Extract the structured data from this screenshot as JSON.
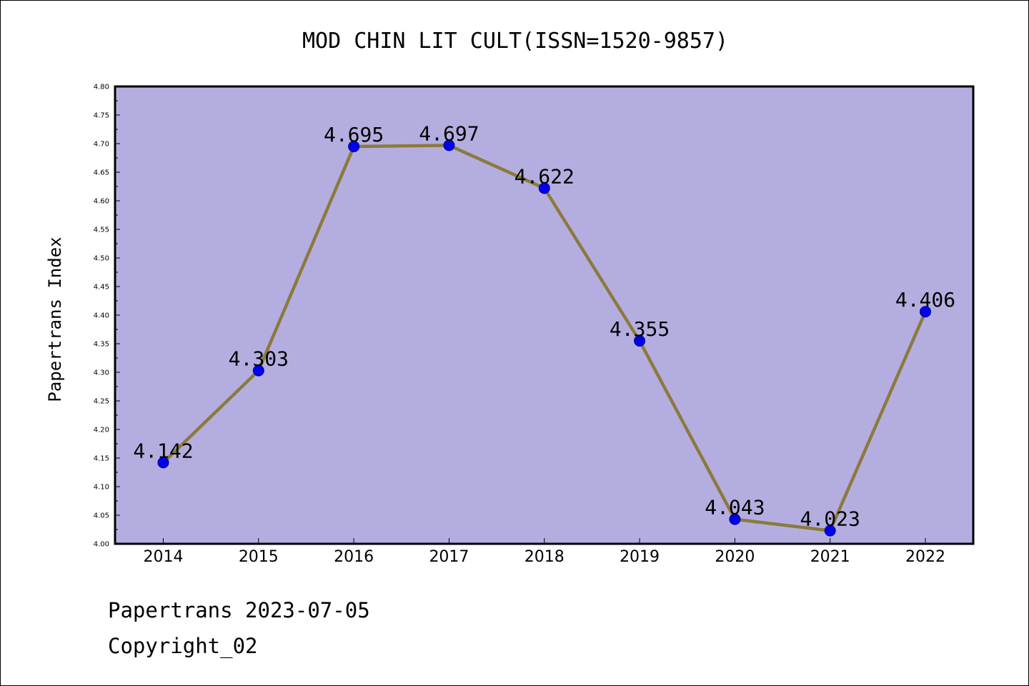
{
  "chart_data": {
    "type": "line",
    "title": "MOD CHIN LIT CULT(ISSN=1520-9857)",
    "ylabel": "Papertrans Index",
    "xlabel": "",
    "categories": [
      "2014",
      "2015",
      "2016",
      "2017",
      "2018",
      "2019",
      "2020",
      "2021",
      "2022"
    ],
    "values": [
      4.142,
      4.303,
      4.695,
      4.697,
      4.622,
      4.355,
      4.043,
      4.023,
      4.406
    ],
    "data_labels": [
      "4.142",
      "4.303",
      "4.695",
      "4.697",
      "4.622",
      "4.355",
      "4.043",
      "4.023",
      "4.406"
    ],
    "ylim": [
      4.0,
      4.8
    ],
    "yticks": [
      "4.00",
      "4.05",
      "4.10",
      "4.15",
      "4.20",
      "4.25",
      "4.30",
      "4.35",
      "4.40",
      "4.45",
      "4.50",
      "4.55",
      "4.60",
      "4.65",
      "4.70",
      "4.75",
      "4.80"
    ],
    "grid": false,
    "legend": "none",
    "colors": {
      "plot_background": "#b4aee0",
      "line": "#8b7a3c",
      "marker": "#0000ee",
      "marker_edge": "#000080"
    }
  },
  "footer": {
    "line1": "Papertrans 2023-07-05",
    "line2": "Copyright_02"
  }
}
